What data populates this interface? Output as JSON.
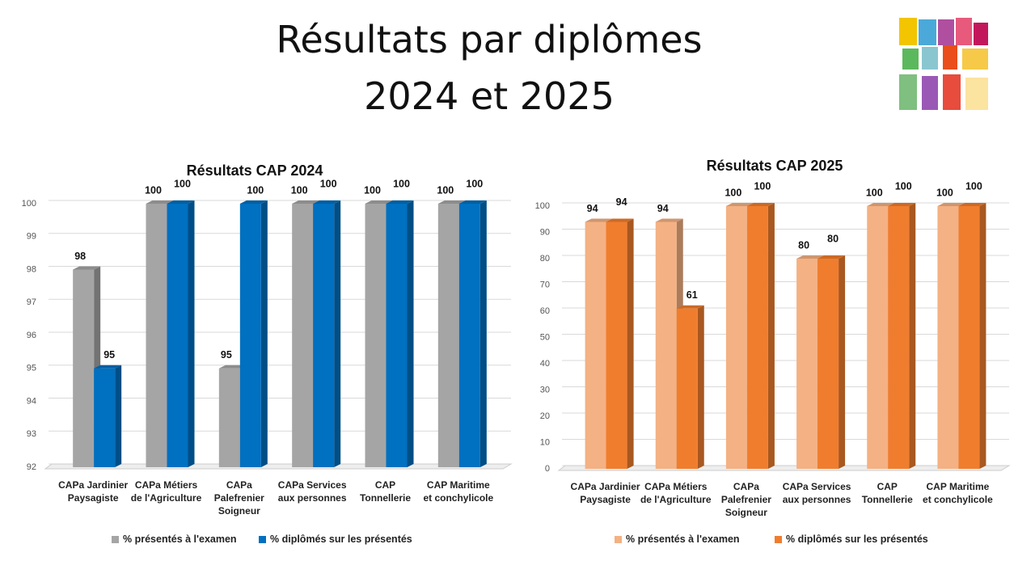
{
  "title": [
    "Résultats par diplômes",
    "2024 et 2025"
  ],
  "chart_data": [
    {
      "type": "bar",
      "title": "Résultats CAP 2024",
      "categories": [
        "CAPa Jardinier Paysagiste",
        "CAPa Métiers de l'Agriculture",
        "CAPa Palefrenier Soigneur",
        "CAPa Services aux personnes",
        "CAP Tonnellerie",
        "CAP Maritime et conchylicole"
      ],
      "series": [
        {
          "name": "% présentés à l'examen",
          "color": "#a5a5a5",
          "values": [
            98,
            100,
            95,
            100,
            100,
            100
          ]
        },
        {
          "name": "% diplômés sur les présentés",
          "color": "#0070c0",
          "values": [
            95,
            100,
            100,
            100,
            100,
            100
          ]
        }
      ],
      "ylim": [
        92,
        100
      ],
      "yticks": [
        92,
        93,
        94,
        95,
        96,
        97,
        98,
        99,
        100
      ],
      "grid": true,
      "legend": "bottom"
    },
    {
      "type": "bar",
      "title": "Résultats CAP 2025",
      "categories": [
        "CAPa Jardinier Paysagiste",
        "CAPa Métiers de l'Agriculture",
        "CAPa Palefrenier Soigneur",
        "CAPa Services aux personnes",
        "CAP Tonnellerie",
        "CAP Maritime et conchylicole"
      ],
      "series": [
        {
          "name": "% présentés à l'examen",
          "color": "#f4b183",
          "values": [
            94,
            94,
            100,
            80,
            100,
            100
          ]
        },
        {
          "name": "% diplômés sur les présentés",
          "color": "#f07d2e",
          "values": [
            94,
            61,
            100,
            80,
            100,
            100
          ]
        }
      ],
      "ylim": [
        0,
        100
      ],
      "yticks": [
        0,
        10,
        20,
        30,
        40,
        50,
        60,
        70,
        80,
        90,
        100
      ],
      "grid": true,
      "legend": "bottom"
    }
  ]
}
